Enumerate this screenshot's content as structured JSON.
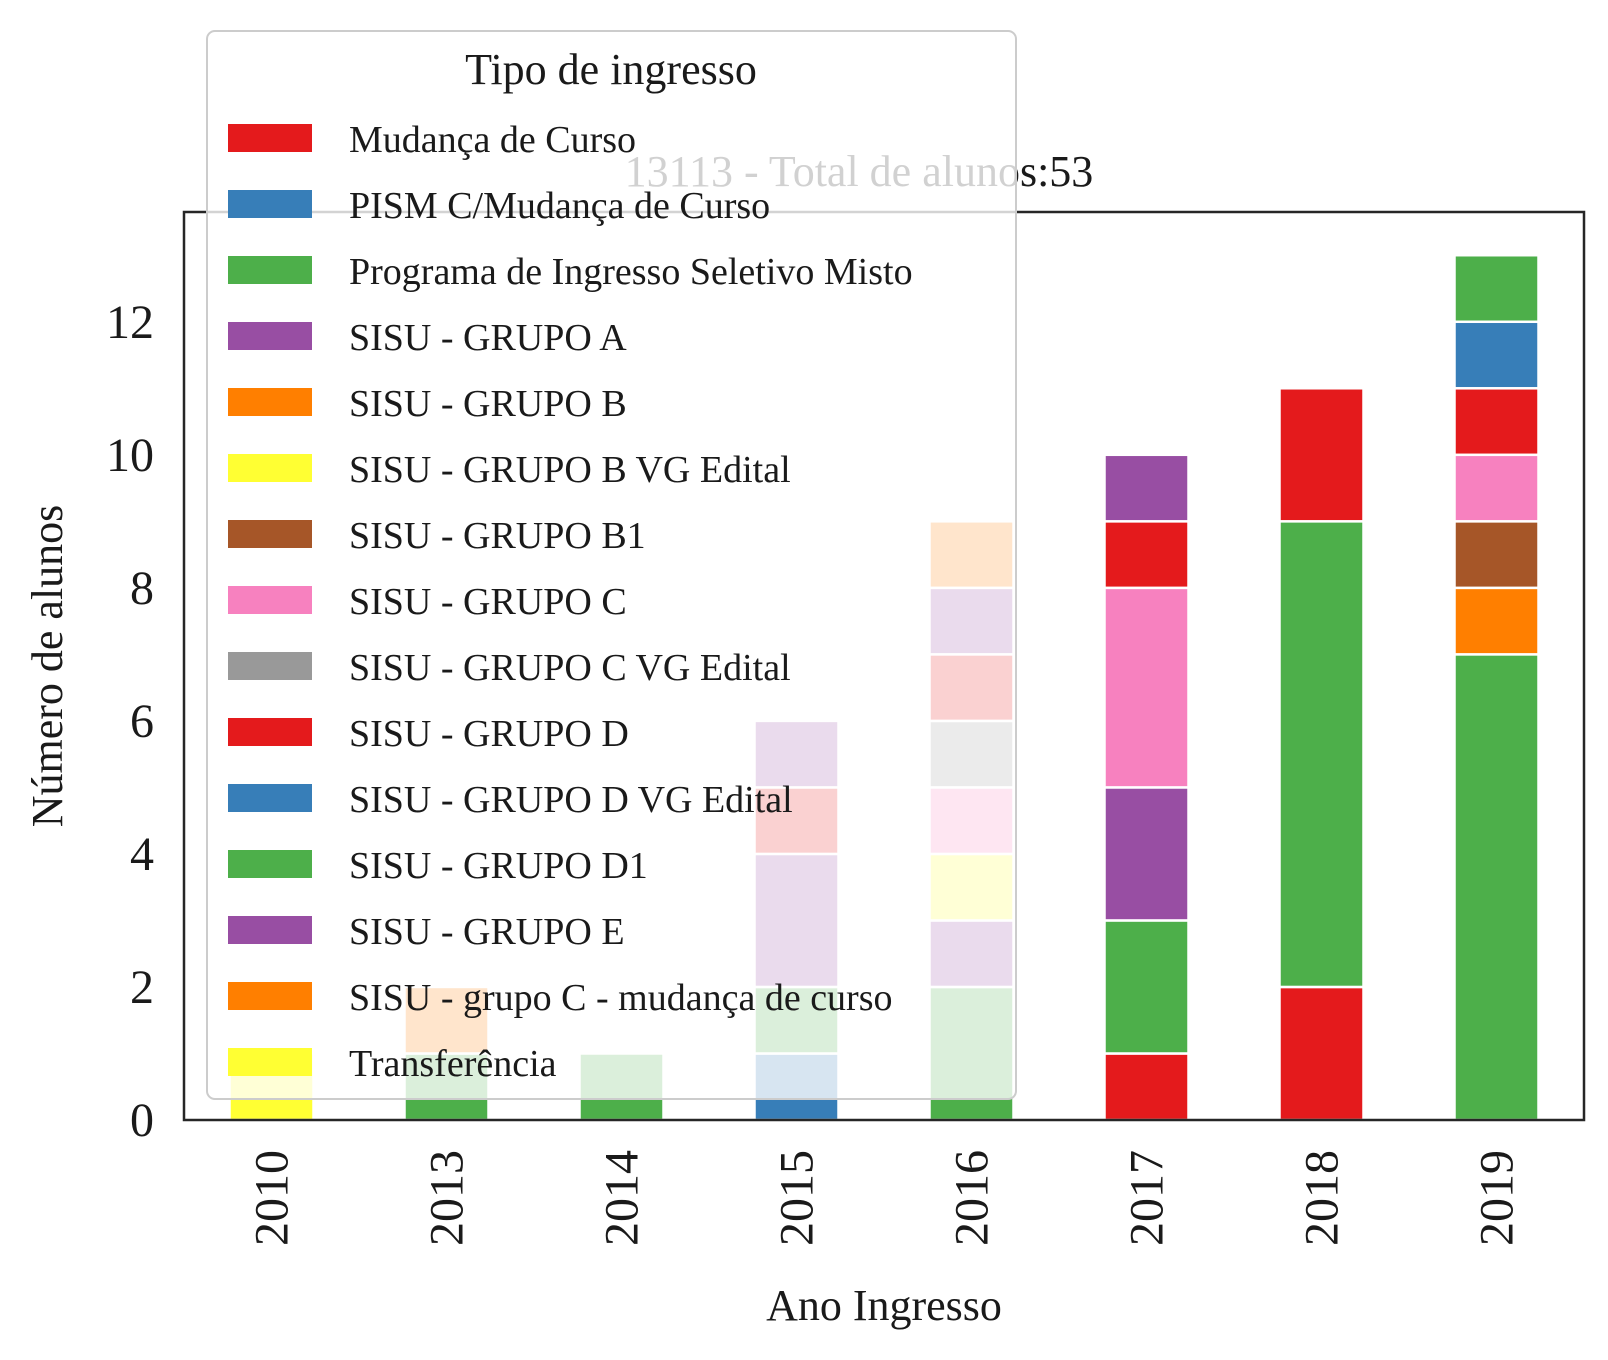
{
  "chart_data": {
    "type": "bar",
    "stacked": true,
    "title": "13113 - Total de alunos:53",
    "xlabel": "Ano Ingresso",
    "ylabel": "Número de alunos",
    "ylim": [
      0,
      13.65
    ],
    "yticks": [
      0,
      2,
      4,
      6,
      8,
      10,
      12
    ],
    "categories": [
      "2010",
      "2013",
      "2014",
      "2015",
      "2016",
      "2017",
      "2018",
      "2019"
    ],
    "grid": false,
    "legend": {
      "title": "Tipo de ingresso",
      "placement": "upper-left"
    },
    "series": [
      {
        "name": "Mudança de Curso",
        "color": "#e41a1c",
        "values": [
          0,
          0,
          0,
          0,
          0,
          1,
          2,
          0
        ]
      },
      {
        "name": "PISM C/Mudança de Curso",
        "color": "#377eb8",
        "values": [
          0,
          0,
          0,
          1,
          0,
          0,
          0,
          0
        ]
      },
      {
        "name": "Programa de Ingresso Seletivo Misto",
        "color": "#4daf4a",
        "values": [
          0,
          1,
          1,
          1,
          2,
          2,
          7,
          7
        ]
      },
      {
        "name": "SISU - GRUPO A",
        "color": "#984ea3",
        "values": [
          0,
          0,
          0,
          2,
          1,
          2,
          0,
          0
        ]
      },
      {
        "name": "SISU - GRUPO B",
        "color": "#ff7f00",
        "values": [
          0,
          0,
          0,
          0,
          0,
          0,
          0,
          1
        ]
      },
      {
        "name": "SISU - GRUPO B VG Edital",
        "color": "#ffff33",
        "values": [
          0,
          0,
          0,
          0,
          1,
          0,
          0,
          0
        ]
      },
      {
        "name": "SISU - GRUPO B1",
        "color": "#a65628",
        "values": [
          0,
          0,
          0,
          0,
          0,
          0,
          0,
          1
        ]
      },
      {
        "name": "SISU - GRUPO C",
        "color": "#f781bf",
        "values": [
          0,
          0,
          0,
          0,
          1,
          3,
          0,
          1
        ]
      },
      {
        "name": "SISU - GRUPO C VG Edital",
        "color": "#999999",
        "values": [
          0,
          0,
          0,
          0,
          1,
          0,
          0,
          0
        ]
      },
      {
        "name": "SISU - GRUPO D",
        "color": "#e41a1c",
        "values": [
          0,
          0,
          0,
          1,
          1,
          1,
          2,
          1
        ]
      },
      {
        "name": "SISU - GRUPO D VG Edital",
        "color": "#377eb8",
        "values": [
          0,
          0,
          0,
          0,
          0,
          0,
          0,
          1
        ]
      },
      {
        "name": "SISU - GRUPO D1",
        "color": "#4daf4a",
        "values": [
          0,
          0,
          0,
          0,
          0,
          0,
          0,
          1
        ]
      },
      {
        "name": "SISU - GRUPO E",
        "color": "#984ea3",
        "values": [
          0,
          0,
          0,
          1,
          1,
          1,
          0,
          0
        ]
      },
      {
        "name": "SISU - grupo C - mudança de curso",
        "color": "#ff7f00",
        "values": [
          0,
          1,
          0,
          0,
          1,
          0,
          0,
          0
        ]
      },
      {
        "name": "Transferência",
        "color": "#ffff33",
        "values": [
          1,
          0,
          0,
          0,
          0,
          0,
          0,
          0
        ]
      }
    ]
  }
}
